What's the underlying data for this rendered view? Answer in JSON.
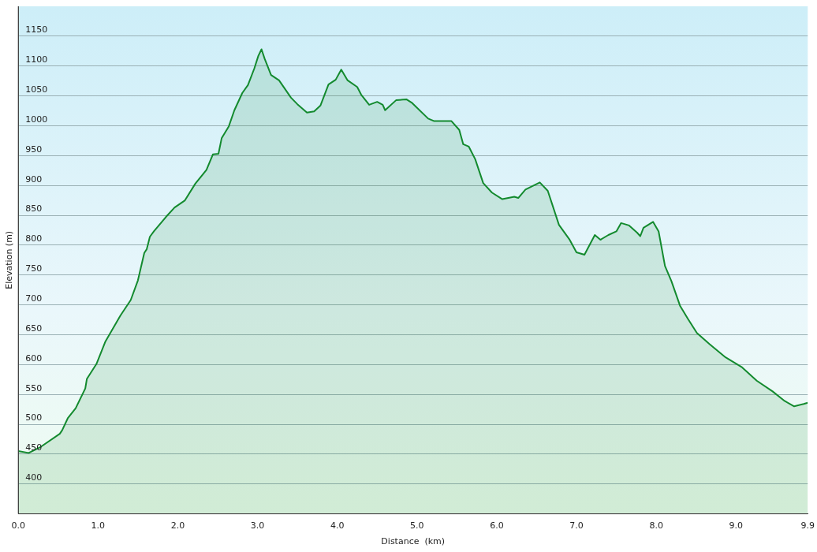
{
  "chart_data": {
    "type": "area",
    "xlabel": "Distance  (km)",
    "ylabel": "Elevation (m)",
    "xlim": [
      0,
      9.9
    ],
    "xticks": [
      {
        "value": 0,
        "label": "0.0"
      },
      {
        "value": 1,
        "label": "1.0"
      },
      {
        "value": 2,
        "label": "2.0"
      },
      {
        "value": 3,
        "label": "3.0"
      },
      {
        "value": 4,
        "label": "4.0"
      },
      {
        "value": 5,
        "label": "5.0"
      },
      {
        "value": 6,
        "label": "6.0"
      },
      {
        "value": 7,
        "label": "7.0"
      },
      {
        "value": 8,
        "label": "8.0"
      },
      {
        "value": 9,
        "label": "9.0"
      },
      9.9
    ],
    "ylim": [
      350,
      1200
    ],
    "yticks": [
      400,
      450,
      500,
      550,
      600,
      650,
      700,
      750,
      800,
      850,
      900,
      950,
      1000,
      1050,
      1100,
      1150
    ],
    "grid": "y",
    "legend": false,
    "marker": "none",
    "line_style": "solid",
    "series": [
      {
        "color": "#138a2e",
        "x": [
          0,
          0.13,
          0.28,
          0.52,
          0.55,
          0.62,
          0.72,
          0.84,
          0.86,
          0.98,
          1.09,
          1.28,
          1.41,
          1.5,
          1.58,
          1.61,
          1.65,
          1.7,
          1.85,
          1.96,
          2.09,
          2.22,
          2.36,
          2.44,
          2.51,
          2.55,
          2.64,
          2.71,
          2.81,
          2.88,
          2.96,
          3.01,
          3.05,
          3.09,
          3.17,
          3.27,
          3.42,
          3.5,
          3.62,
          3.71,
          3.79,
          3.89,
          3.98,
          4.05,
          4.13,
          4.25,
          4.3,
          4.4,
          4.5,
          4.57,
          4.6,
          4.74,
          4.87,
          4.94,
          5.14,
          5.21,
          5.43,
          5.53,
          5.58,
          5.65,
          5.73,
          5.83,
          5.94,
          6.07,
          6.22,
          6.27,
          6.36,
          6.54,
          6.64,
          6.78,
          6.91,
          7.0,
          7.1,
          7.23,
          7.3,
          7.4,
          7.5,
          7.56,
          7.66,
          7.76,
          7.8,
          7.84,
          7.96,
          8.03,
          8.11,
          8.19,
          8.3,
          8.4,
          8.51,
          8.67,
          8.87,
          9.07,
          9.26,
          9.46,
          9.61,
          9.73,
          9.85,
          9.9
        ],
        "values": [
          455,
          452,
          462,
          484,
          490,
          510,
          527,
          560,
          576,
          601,
          638,
          682,
          708,
          741,
          787,
          793,
          814,
          823,
          847,
          863,
          875,
          903,
          926,
          952,
          953,
          979,
          999,
          1026,
          1055,
          1068,
          1096,
          1117,
          1128,
          1112,
          1085,
          1076,
          1047,
          1036,
          1022,
          1024,
          1034,
          1069,
          1077,
          1094,
          1076,
          1065,
          1052,
          1035,
          1040,
          1035,
          1026,
          1043,
          1044,
          1038,
          1012,
          1008,
          1008,
          993,
          969,
          965,
          944,
          904,
          888,
          877,
          881,
          879,
          893,
          905,
          891,
          834,
          810,
          788,
          784,
          817,
          809,
          817,
          823,
          837,
          833,
          821,
          815,
          829,
          839,
          823,
          765,
          740,
          698,
          676,
          653,
          634,
          612,
          596,
          573,
          555,
          539,
          530,
          534,
          536
        ]
      }
    ]
  }
}
